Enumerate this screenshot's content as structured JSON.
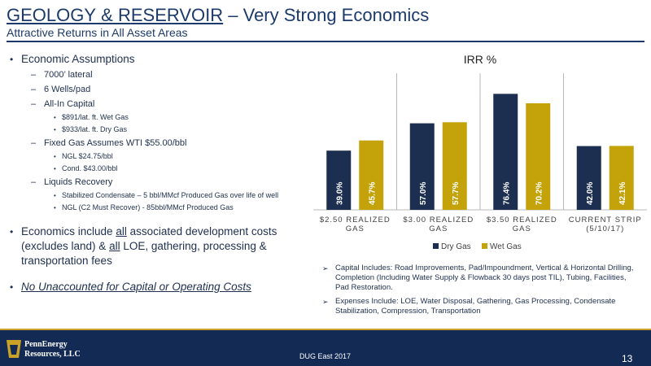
{
  "header": {
    "title_g": "G",
    "title_eology": "EOLOGY",
    "title_amp": " & ",
    "title_r": "R",
    "title_eservoir": "ESERVOIR",
    "title_rest": " – Very Strong Economics",
    "subtitle": "Attractive Returns in All Asset Areas"
  },
  "left": {
    "economic_assumptions": "Economic Assumptions",
    "lateral": "7000’ lateral",
    "wells": "6 Wells/pad",
    "all_in_capital": "All-In Capital",
    "wet_gas_cost": "$891/lat. ft. Wet Gas",
    "dry_gas_cost": "$933/lat. ft. Dry Gas",
    "fixed_gas": "Fixed Gas Assumes WTI $55.00/bbl",
    "ngl": "NGL $24.75/bbl",
    "cond": "Cond. $43.00/bbl",
    "liquids_recovery": "Liquids Recovery",
    "stabilized": "Stabilized Condensate – 5 bbl/MMcf Produced Gas over life of well",
    "ngl_recover": "NGL (C2 Must Recover) - 85bbl/MMcf Produced Gas",
    "econ_a": "Economics include ",
    "econ_all1": "all",
    "econ_b": " associated development costs (excludes land) & ",
    "econ_all2": "all",
    "econ_c": " LOE, gathering, processing & transportation fees",
    "no_unaccounted": "No Unaccounted for Capital or Operating Costs"
  },
  "notes": {
    "capital": "Capital Includes: Road Improvements, Pad/Impoundment, Vertical & Horizontal Drilling, Completion (Including Water Supply & Flowback 30 days post TIL), Tubing, Facilities, Pad Restoration.",
    "expenses": "Expenses Include: LOE, Water Disposal, Gathering, Gas Processing, Condensate Stabilization, Compression, Transportation",
    "arrow_icon": "➢"
  },
  "chart_data": {
    "type": "bar",
    "title": "IRR %",
    "categories": [
      "$2.50 REALIZED GAS",
      "$3.00 REALIZED GAS",
      "$3.50 REALIZED GAS",
      "CURRENT STRIP (5/10/17)"
    ],
    "category_lines": [
      [
        "$2.50 REALIZED",
        "GAS"
      ],
      [
        "$3.00 REALIZED",
        "GAS"
      ],
      [
        "$3.50 REALIZED",
        "GAS"
      ],
      [
        "CURRENT STRIP",
        "(5/10/17)"
      ]
    ],
    "series": [
      {
        "name": "Dry Gas",
        "values": [
          39.0,
          57.0,
          76.4,
          42.0
        ],
        "labels": [
          "39.0%",
          "57.0%",
          "76.4%",
          "42.0%"
        ],
        "color": "#1c2f50"
      },
      {
        "name": "Wet Gas",
        "values": [
          45.7,
          57.7,
          70.2,
          42.1
        ],
        "labels": [
          "45.7%",
          "57.7%",
          "70.2%",
          "42.1%"
        ],
        "color": "#c4a30a"
      }
    ],
    "ylim": [
      0,
      90
    ],
    "legend": "bottom",
    "grid": false
  },
  "footer": {
    "logo_line1": "PennEnergy",
    "logo_line2": "Resources, LLC",
    "event": "DUG East 2017",
    "page": "13"
  },
  "colors": {
    "navy": "#132a55",
    "gold": "#c9a227"
  }
}
